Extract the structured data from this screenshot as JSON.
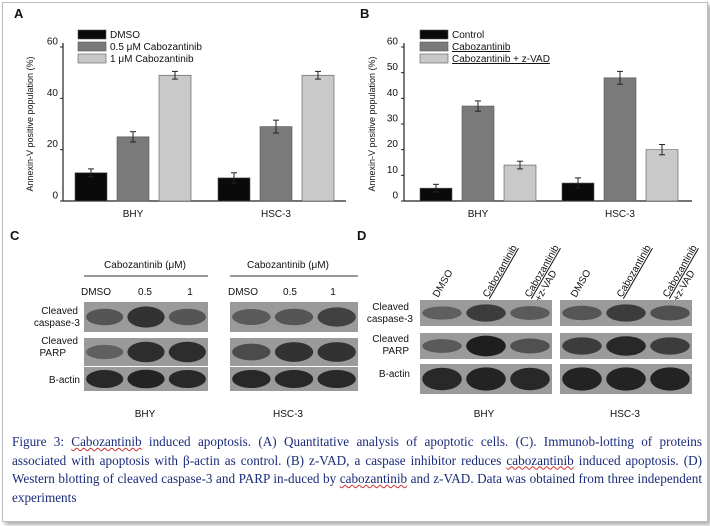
{
  "charts": [
    {
      "panel": "A",
      "chart_data": {
        "type": "bar",
        "categories": [
          "BHY",
          "HSC-3"
        ],
        "series": [
          {
            "name": "DMSO",
            "color": "#0a0a0a",
            "values": [
              11,
              9
            ],
            "errors": [
              1.5,
              2
            ]
          },
          {
            "name": "0.5 μM Cabozantinib",
            "color": "#7a7a7a",
            "values": [
              25,
              29
            ],
            "errors": [
              2,
              2.5
            ]
          },
          {
            "name": "1 μM Cabozantinib",
            "color": "#c9c9c9",
            "values": [
              49,
              49
            ],
            "errors": [
              1.5,
              1.5
            ]
          }
        ],
        "ylabel": "Annexin-V positive population (%)",
        "xlabel": "",
        "ylim": [
          0,
          60
        ],
        "yticks": [
          0,
          20,
          40,
          60
        ],
        "legend": "top-left"
      }
    },
    {
      "panel": "B",
      "chart_data": {
        "type": "bar",
        "categories": [
          "BHY",
          "HSC-3"
        ],
        "series": [
          {
            "name": "Control",
            "color": "#0a0a0a",
            "values": [
              5,
              7
            ],
            "errors": [
              1.5,
              2
            ]
          },
          {
            "name": "Cabozantinib",
            "color": "#7a7a7a",
            "values": [
              37,
              48
            ],
            "errors": [
              2,
              2.5
            ]
          },
          {
            "name": "Cabozantinib + z-VAD",
            "color": "#c9c9c9",
            "values": [
              14,
              20
            ],
            "errors": [
              1.5,
              2
            ]
          }
        ],
        "ylabel": "Annexin-V positive population (%)",
        "xlabel": "",
        "ylim": [
          0,
          60
        ],
        "yticks": [
          0,
          10,
          20,
          30,
          40,
          50,
          60
        ],
        "legend": "top-left"
      }
    }
  ],
  "panelC": {
    "letter": "C",
    "treatment": "Cabozantinib (μM)",
    "lanes": [
      "DMSO",
      "0.5",
      "1"
    ],
    "rows": [
      "Cleaved caspase-3",
      "Cleaved PARP",
      "Β-actin"
    ],
    "cells": [
      "BHY",
      "HSC-3"
    ]
  },
  "panelD": {
    "letter": "D",
    "lanes": [
      "DMSO",
      "Cabozantinib",
      "Cabozantinib +z-VAD"
    ],
    "rows": [
      "Cleaved caspase-3",
      "Cleaved PARP",
      "B-actin"
    ],
    "cells": [
      "BHY",
      "HSC-3"
    ]
  },
  "caption": {
    "lead": "Figure 3: ",
    "parts": [
      {
        "t": "Cabozantinib",
        "mark": true
      },
      {
        "t": " induced apoptosis. (A) Quantitative analysis of apoptotic cells. (C). Immunob-lotting of proteins associated with apoptosis with β-actin as control. (B) z-VAD, a caspase inhibitor reduces ",
        "mark": false
      },
      {
        "t": "cabozantinib",
        "mark": true
      },
      {
        "t": " induced apoptosis. (D) Western blotting of cleaved caspase-3 and PARP in-duced by ",
        "mark": false
      },
      {
        "t": "cabozantinib",
        "mark": true
      },
      {
        "t": " and z-VAD. Data was obtained from three independent experiments",
        "mark": false
      }
    ]
  }
}
